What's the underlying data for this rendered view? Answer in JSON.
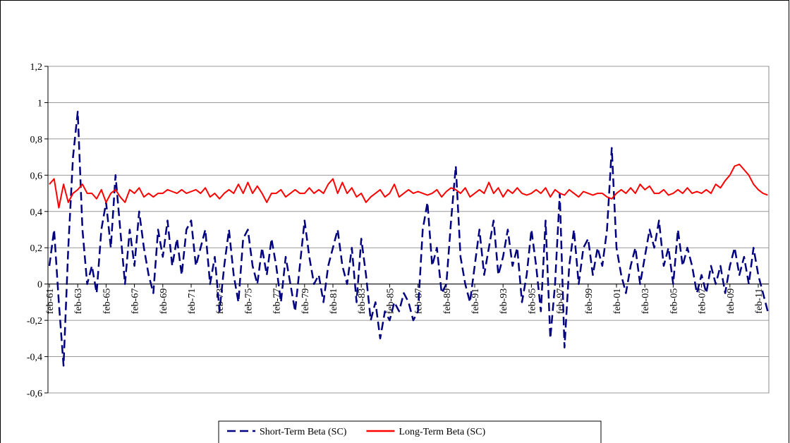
{
  "chart_data": {
    "type": "line",
    "categories": [
      "feb-61",
      null,
      null,
      null,
      null,
      null,
      "feb-63",
      null,
      null,
      null,
      null,
      null,
      "feb-65",
      null,
      null,
      null,
      null,
      null,
      "feb-67",
      null,
      null,
      null,
      null,
      null,
      "feb-69",
      null,
      null,
      null,
      null,
      null,
      "feb-71",
      null,
      null,
      null,
      null,
      null,
      "feb-73",
      null,
      null,
      null,
      null,
      null,
      "feb-75",
      null,
      null,
      null,
      null,
      null,
      "feb-77",
      null,
      null,
      null,
      null,
      null,
      "feb-79",
      null,
      null,
      null,
      null,
      null,
      "feb-81",
      null,
      null,
      null,
      null,
      null,
      "feb-83",
      null,
      null,
      null,
      null,
      null,
      "feb-85",
      null,
      null,
      null,
      null,
      null,
      "feb-87",
      null,
      null,
      null,
      null,
      null,
      "feb-89",
      null,
      null,
      null,
      null,
      null,
      "feb-91",
      null,
      null,
      null,
      null,
      null,
      "feb-93",
      null,
      null,
      null,
      null,
      null,
      "feb-95",
      null,
      null,
      null,
      null,
      null,
      "feb-97",
      null,
      null,
      null,
      null,
      null,
      "feb-99",
      null,
      null,
      null,
      null,
      null,
      "feb-01",
      null,
      null,
      null,
      null,
      null,
      "feb-03",
      null,
      null,
      null,
      null,
      null,
      "feb-05",
      null,
      null,
      null,
      null,
      null,
      "feb-07",
      null,
      null,
      null,
      null,
      null,
      "feb-09",
      null,
      null,
      null,
      null,
      null,
      "feb-11",
      null,
      null
    ],
    "series": [
      {
        "name": "Short-Term Beta (SC)",
        "color": "#000080",
        "dashed": true,
        "values": [
          0.1,
          0.3,
          -0.1,
          -0.45,
          0.2,
          0.7,
          0.95,
          0.3,
          0.0,
          0.1,
          -0.05,
          0.3,
          0.45,
          0.2,
          0.6,
          0.3,
          0.0,
          0.3,
          0.1,
          0.4,
          0.2,
          0.05,
          -0.05,
          0.3,
          0.15,
          0.35,
          0.1,
          0.25,
          0.05,
          0.3,
          0.35,
          0.1,
          0.2,
          0.3,
          0.0,
          0.15,
          -0.15,
          0.1,
          0.3,
          0.05,
          -0.1,
          0.25,
          0.3,
          0.1,
          0.0,
          0.2,
          0.05,
          0.25,
          0.1,
          -0.1,
          0.15,
          0.0,
          -0.15,
          0.1,
          0.35,
          0.15,
          0.0,
          0.05,
          -0.1,
          0.1,
          0.2,
          0.3,
          0.1,
          0.0,
          0.2,
          -0.1,
          0.25,
          0.05,
          -0.2,
          -0.1,
          -0.3,
          -0.15,
          -0.2,
          -0.1,
          -0.15,
          -0.05,
          -0.1,
          -0.2,
          -0.15,
          0.3,
          0.45,
          0.1,
          0.2,
          -0.05,
          0.0,
          0.35,
          0.65,
          0.15,
          0.0,
          -0.1,
          0.1,
          0.3,
          0.05,
          0.2,
          0.35,
          0.05,
          0.15,
          0.3,
          0.1,
          0.2,
          -0.1,
          0.05,
          0.3,
          0.1,
          -0.15,
          0.35,
          -0.3,
          0.0,
          0.5,
          -0.35,
          0.1,
          0.3,
          0.0,
          0.2,
          0.25,
          0.05,
          0.2,
          0.1,
          0.3,
          0.75,
          0.2,
          0.05,
          -0.05,
          0.1,
          0.2,
          0.0,
          0.15,
          0.3,
          0.2,
          0.35,
          0.1,
          0.2,
          0.0,
          0.3,
          0.1,
          0.2,
          0.1,
          -0.05,
          0.05,
          -0.05,
          0.1,
          0.0,
          0.1,
          -0.05,
          0.1,
          0.2,
          0.05,
          0.15,
          0.0,
          0.2,
          0.05,
          -0.05,
          -0.15
        ]
      },
      {
        "name": "Long-Term Beta (SC)",
        "color": "#ff0000",
        "dashed": false,
        "values": [
          0.55,
          0.58,
          0.42,
          0.55,
          0.45,
          0.5,
          0.52,
          0.55,
          0.5,
          0.5,
          0.47,
          0.52,
          0.45,
          0.5,
          0.52,
          0.48,
          0.45,
          0.52,
          0.5,
          0.53,
          0.48,
          0.5,
          0.48,
          0.5,
          0.5,
          0.52,
          0.51,
          0.5,
          0.52,
          0.5,
          0.51,
          0.52,
          0.5,
          0.53,
          0.48,
          0.5,
          0.47,
          0.5,
          0.52,
          0.5,
          0.55,
          0.5,
          0.56,
          0.5,
          0.54,
          0.5,
          0.45,
          0.5,
          0.5,
          0.52,
          0.48,
          0.5,
          0.52,
          0.5,
          0.5,
          0.53,
          0.5,
          0.52,
          0.5,
          0.55,
          0.58,
          0.5,
          0.56,
          0.5,
          0.53,
          0.48,
          0.5,
          0.45,
          0.48,
          0.5,
          0.52,
          0.48,
          0.5,
          0.55,
          0.48,
          0.5,
          0.52,
          0.5,
          0.51,
          0.5,
          0.49,
          0.5,
          0.52,
          0.48,
          0.51,
          0.53,
          0.52,
          0.5,
          0.53,
          0.48,
          0.5,
          0.52,
          0.5,
          0.56,
          0.5,
          0.53,
          0.48,
          0.52,
          0.5,
          0.53,
          0.5,
          0.49,
          0.5,
          0.52,
          0.5,
          0.53,
          0.48,
          0.52,
          0.5,
          0.49,
          0.52,
          0.5,
          0.48,
          0.51,
          0.5,
          0.49,
          0.5,
          0.5,
          0.48,
          0.47,
          0.5,
          0.52,
          0.5,
          0.53,
          0.5,
          0.55,
          0.52,
          0.54,
          0.5,
          0.5,
          0.52,
          0.49,
          0.5,
          0.52,
          0.5,
          0.53,
          0.5,
          0.51,
          0.5,
          0.52,
          0.5,
          0.55,
          0.53,
          0.57,
          0.6,
          0.65,
          0.66,
          0.63,
          0.6,
          0.55,
          0.52,
          0.5,
          0.49
        ]
      }
    ],
    "ylim": [
      -0.6,
      1.2
    ],
    "yticks": [
      {
        "value": -0.6,
        "label": "-0,6"
      },
      {
        "value": -0.4,
        "label": "-0,4"
      },
      {
        "value": -0.2,
        "label": "-0,2"
      },
      0,
      {
        "value": 0.2,
        "label": "0,2"
      },
      {
        "value": 0.4,
        "label": "0,4"
      },
      {
        "value": 0.6,
        "label": "0,6"
      },
      {
        "value": 0.8,
        "label": "0,8"
      },
      1,
      {
        "value": 1.2,
        "label": "1,2"
      }
    ],
    "grid": true,
    "legend": "bottom"
  }
}
